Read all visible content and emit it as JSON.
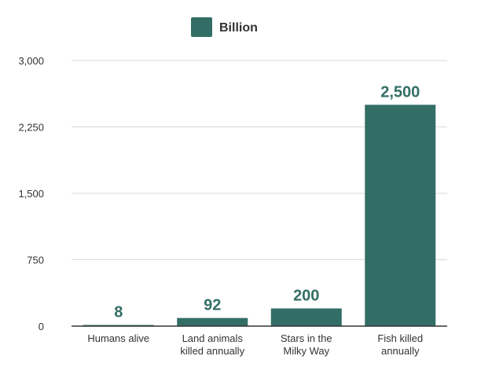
{
  "chart_data": {
    "type": "bar",
    "categories": [
      "Humans alive",
      "Land animals killed annually",
      "Stars in the Milky Way",
      "Fish killed annually"
    ],
    "category_lines": [
      [
        "Humans alive"
      ],
      [
        "Land animals",
        "killed annually"
      ],
      [
        "Stars in the",
        "Milky Way"
      ],
      [
        "Fish killed",
        "annually"
      ]
    ],
    "series": [
      {
        "name": "Billion",
        "values": [
          8,
          92,
          200,
          2500
        ],
        "value_labels": [
          "8",
          "92",
          "200",
          "2,500"
        ]
      }
    ],
    "ylim": [
      0,
      3000
    ],
    "yticks": [
      0,
      750,
      1500,
      2250,
      3000
    ],
    "ytick_labels": [
      "0",
      "750",
      "1,500",
      "2,250",
      "3,000"
    ],
    "grid": true,
    "legend_position": "top-center",
    "colors": {
      "bar": "#336e66",
      "data_label": "#336e66",
      "grid": "#d9d9d9",
      "axis": "#333333",
      "text": "#333333"
    }
  }
}
